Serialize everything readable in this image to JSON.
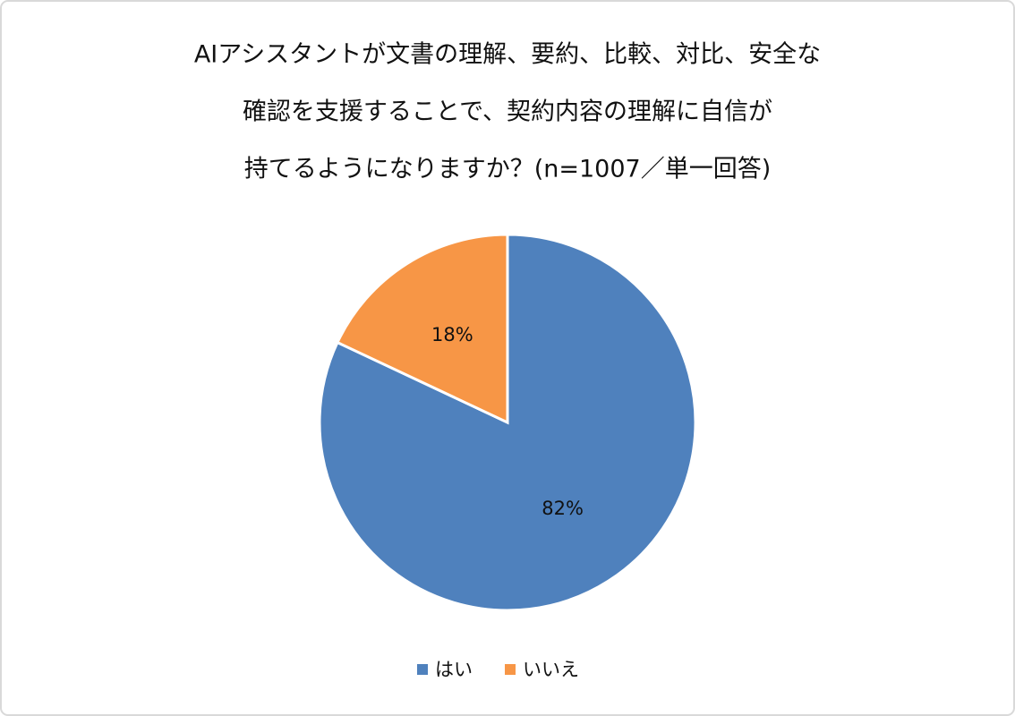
{
  "chart_data": {
    "type": "pie",
    "title": [
      "AIアシスタントが文書の理解、要約、比較、対比、安全な",
      "確認を支援することで、契約内容の理解に自信が",
      "持てるようになりますか？(n=1007／単一回答)"
    ],
    "categories": [
      "はい",
      "いいえ"
    ],
    "values": [
      82,
      18
    ],
    "value_labels": [
      "82%",
      "18%"
    ],
    "colors": [
      "#4f81bd",
      "#f79646"
    ],
    "legend": "bottom"
  }
}
